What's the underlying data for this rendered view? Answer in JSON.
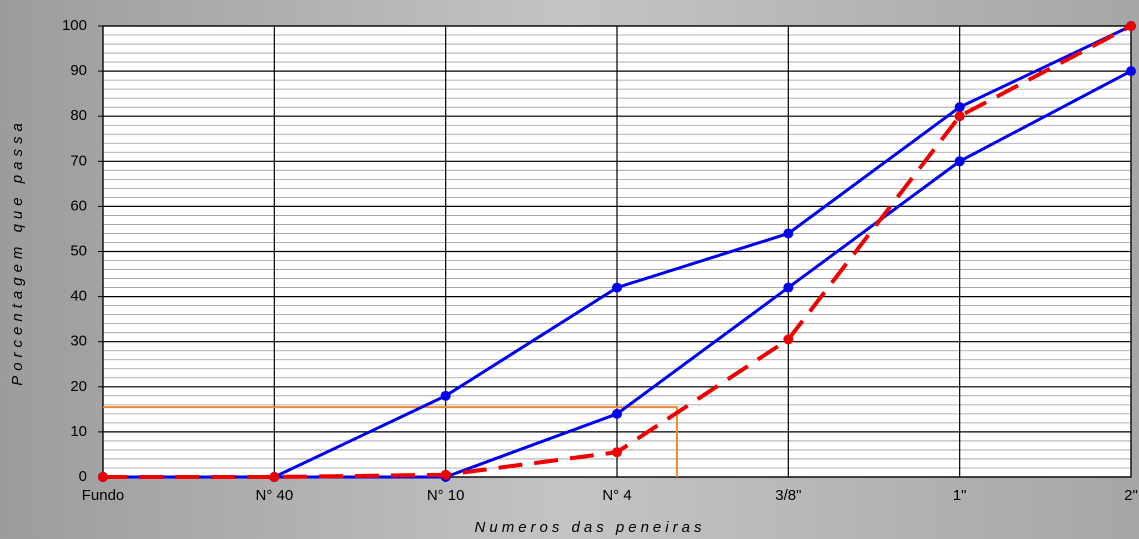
{
  "chart_data": {
    "type": "line",
    "xlabel": "Numeros das peneiras",
    "ylabel": "Porcentagem que passa",
    "categories": [
      "Fundo",
      "N° 40",
      "N° 10",
      "N° 4",
      "3/8\"",
      "1\"",
      "2\""
    ],
    "series": [
      {
        "color": "#0000ee",
        "dashed": false,
        "values": [
          0,
          0,
          18,
          42,
          54,
          82,
          100
        ]
      },
      {
        "color": "#0000ee",
        "dashed": false,
        "values": [
          0,
          0,
          0,
          14,
          42,
          70,
          90
        ]
      },
      {
        "color": "#ee0000",
        "dashed": true,
        "values": [
          0,
          0,
          0.5,
          5.5,
          30.5,
          80,
          100
        ]
      }
    ],
    "reference": {
      "x": 3.35,
      "y": 15.5,
      "color": "#f08a30"
    },
    "ylim": [
      0,
      100
    ],
    "yticks": [
      0,
      10,
      20,
      30,
      40,
      50,
      60,
      70,
      80,
      90,
      100
    ],
    "grid": true,
    "minor_step": 2
  }
}
